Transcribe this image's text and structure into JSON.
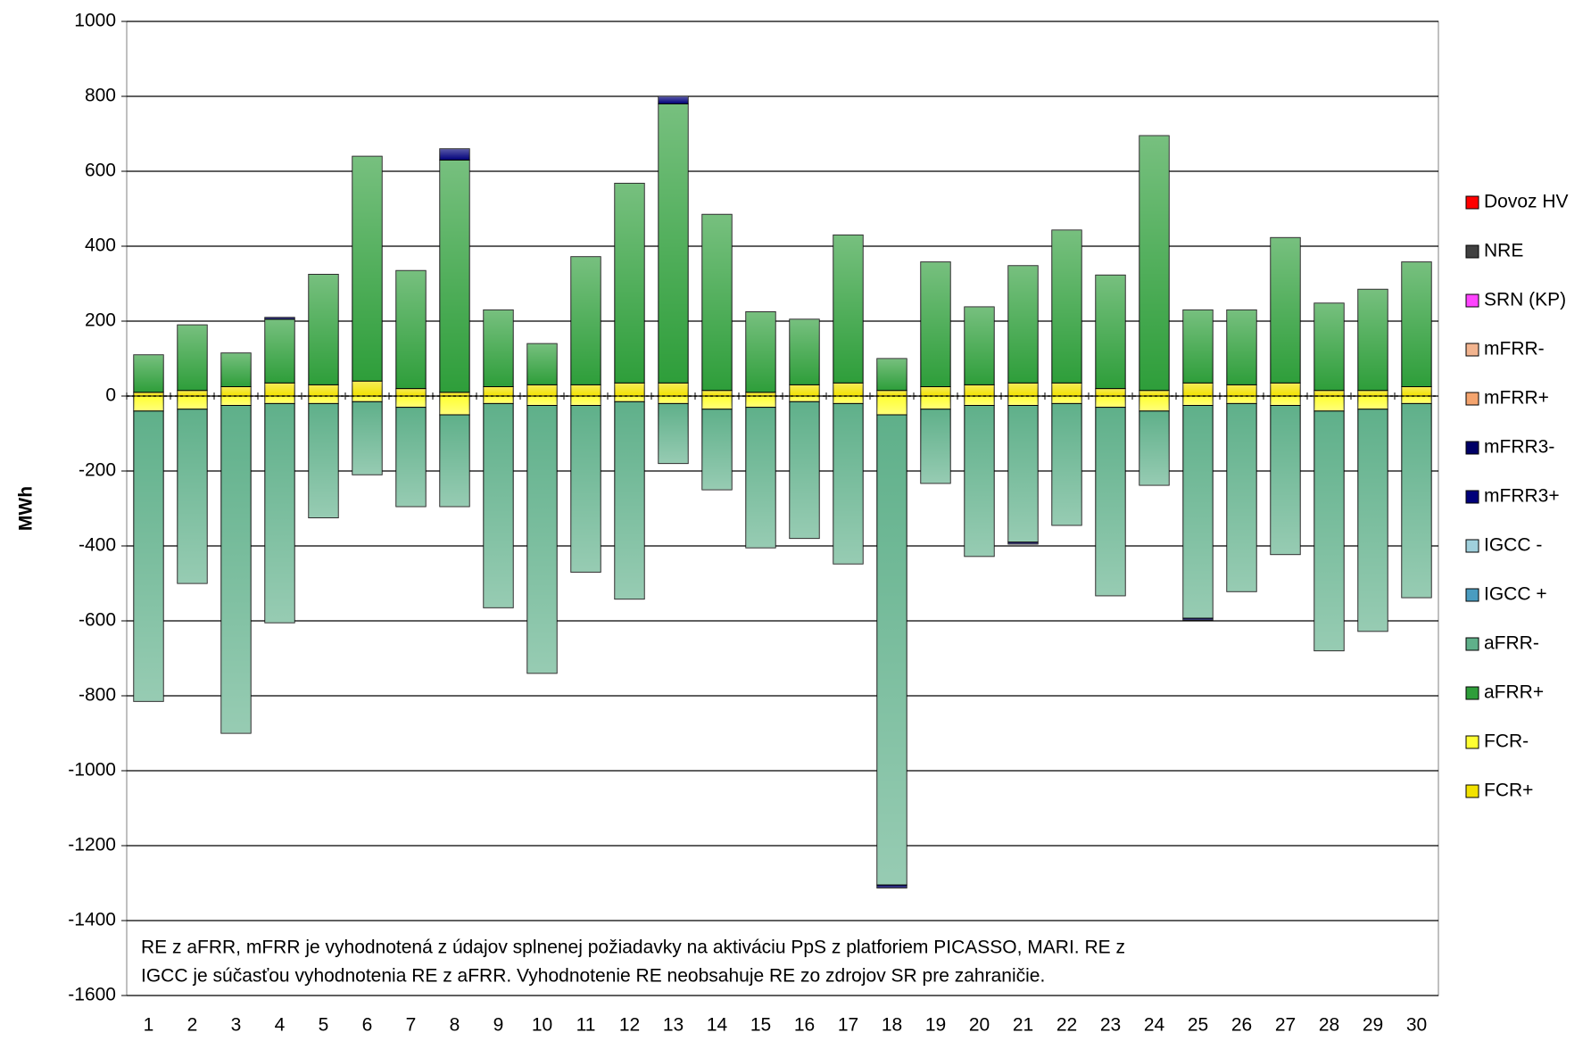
{
  "chart_data": {
    "type": "bar",
    "stacked": true,
    "y_label": "MWh",
    "annotation": [
      "RE z aFRR, mFRR je vyhodnotená z údajov splnenej požiadavky na aktiváciu PpS z platforiem PICASSO, MARI. RE z",
      "IGCC je súčasťou vyhodnotenia RE z aFRR. Vyhodnotenie RE neobsahuje RE zo zdrojov SR pre zahraničie."
    ],
    "categories": [
      "1",
      "2",
      "3",
      "4",
      "5",
      "6",
      "7",
      "8",
      "9",
      "10",
      "11",
      "12",
      "13",
      "14",
      "15",
      "16",
      "17",
      "18",
      "19",
      "20",
      "21",
      "22",
      "23",
      "24",
      "25",
      "26",
      "27",
      "28",
      "29",
      "30"
    ],
    "ylim": [
      -1600,
      1000
    ],
    "yticks": [
      -1600,
      -1400,
      -1200,
      -1000,
      -800,
      -600,
      -400,
      -200,
      0,
      200,
      400,
      600,
      800,
      1000
    ],
    "grid": true,
    "legend": "right",
    "series": [
      {
        "name": "Dovoz HV",
        "color": "#ff0000",
        "values": [
          0,
          0,
          0,
          0,
          0,
          0,
          0,
          0,
          0,
          0,
          0,
          0,
          0,
          0,
          0,
          0,
          0,
          0,
          0,
          0,
          0,
          0,
          0,
          0,
          0,
          0,
          0,
          0,
          0,
          0
        ]
      },
      {
        "name": "NRE",
        "color": "#404040",
        "values": [
          0,
          0,
          0,
          0,
          0,
          0,
          0,
          0,
          0,
          0,
          0,
          0,
          0,
          0,
          0,
          0,
          0,
          0,
          0,
          0,
          0,
          0,
          0,
          0,
          0,
          0,
          0,
          0,
          0,
          0
        ]
      },
      {
        "name": "SRN (KP)",
        "color": "#ff44ff",
        "values": [
          0,
          0,
          0,
          0,
          0,
          0,
          0,
          0,
          0,
          0,
          0,
          0,
          0,
          0,
          0,
          0,
          0,
          0,
          0,
          0,
          0,
          0,
          0,
          0,
          0,
          0,
          0,
          0,
          0,
          0
        ]
      },
      {
        "name": "mFRR-",
        "color": "#f2b48f",
        "values": [
          0,
          0,
          0,
          0,
          0,
          0,
          0,
          0,
          0,
          0,
          0,
          0,
          0,
          0,
          0,
          0,
          0,
          0,
          0,
          0,
          0,
          0,
          0,
          0,
          0,
          0,
          0,
          0,
          0,
          0
        ]
      },
      {
        "name": "mFRR+",
        "color": "#f4a46e",
        "values": [
          0,
          0,
          0,
          0,
          0,
          0,
          0,
          0,
          0,
          0,
          0,
          0,
          0,
          0,
          0,
          0,
          0,
          0,
          0,
          0,
          0,
          0,
          0,
          0,
          0,
          0,
          0,
          0,
          0,
          0
        ]
      },
      {
        "name": "mFRR3-",
        "color": "#000066",
        "values": [
          0,
          0,
          0,
          0,
          0,
          0,
          0,
          0,
          0,
          0,
          0,
          0,
          0,
          0,
          0,
          0,
          0,
          -8,
          0,
          0,
          -5,
          0,
          0,
          0,
          -5,
          0,
          0,
          0,
          0,
          0
        ]
      },
      {
        "name": "mFRR3+",
        "color": "#00007a",
        "values": [
          0,
          0,
          0,
          5,
          0,
          0,
          0,
          30,
          0,
          0,
          0,
          0,
          20,
          0,
          0,
          0,
          0,
          0,
          0,
          0,
          0,
          0,
          0,
          0,
          0,
          0,
          0,
          0,
          0,
          0
        ]
      },
      {
        "name": "IGCC -",
        "color": "#a0d0dc",
        "values": [
          0,
          0,
          0,
          0,
          0,
          0,
          0,
          0,
          0,
          0,
          0,
          0,
          0,
          0,
          0,
          0,
          0,
          0,
          0,
          0,
          0,
          0,
          0,
          0,
          0,
          0,
          0,
          0,
          0,
          0
        ]
      },
      {
        "name": "IGCC +",
        "color": "#4a9cc0",
        "values": [
          0,
          0,
          0,
          0,
          0,
          0,
          0,
          0,
          0,
          0,
          0,
          0,
          0,
          0,
          0,
          0,
          0,
          0,
          0,
          0,
          0,
          0,
          0,
          0,
          0,
          0,
          0,
          0,
          0,
          0
        ]
      },
      {
        "name": "aFRR-",
        "color": "#5fb08a",
        "values": [
          -775,
          -465,
          -875,
          -585,
          -305,
          -195,
          -265,
          -245,
          -545,
          -715,
          -445,
          -527,
          -160,
          -215,
          -375,
          -365,
          -428,
          -1255,
          -198,
          -403,
          -365,
          -325,
          -503,
          -198,
          -568,
          -502,
          -398,
          -640,
          -593,
          -518
        ]
      },
      {
        "name": "aFRR+",
        "color": "#2e9e3a",
        "values": [
          100,
          175,
          90,
          170,
          295,
          600,
          315,
          620,
          205,
          110,
          342,
          533,
          745,
          470,
          215,
          175,
          395,
          85,
          333,
          208,
          313,
          408,
          303,
          680,
          195,
          200,
          388,
          233,
          270,
          333
        ]
      },
      {
        "name": "FCR-",
        "color": "#ffff33",
        "values": [
          -40,
          -35,
          -25,
          -20,
          -20,
          -15,
          -30,
          -50,
          -20,
          -25,
          -25,
          -15,
          -20,
          -35,
          -30,
          -15,
          -20,
          -50,
          -35,
          -25,
          -25,
          -20,
          -30,
          -40,
          -25,
          -20,
          -25,
          -40,
          -35,
          -20
        ]
      },
      {
        "name": "FCR+",
        "color": "#f2e200",
        "values": [
          10,
          15,
          25,
          35,
          30,
          40,
          20,
          10,
          25,
          30,
          30,
          35,
          35,
          15,
          10,
          30,
          35,
          15,
          25,
          30,
          35,
          35,
          20,
          15,
          35,
          30,
          35,
          15,
          15,
          25
        ]
      }
    ]
  }
}
